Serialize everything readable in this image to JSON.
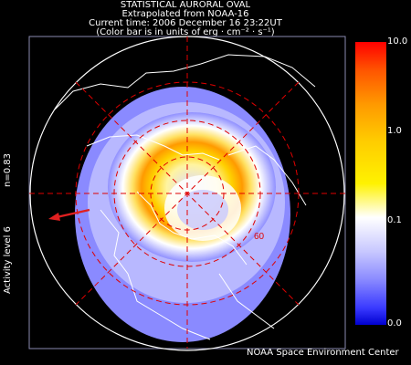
{
  "header": {
    "line1": "STATISTICAL AURORAL OVAL",
    "line2": "Extrapolated from NOAA-16",
    "line3": "Current time: 2006 December 16 23:22UT",
    "line4": "(Color bar is in units of erg · cm⁻² · s⁻¹)"
  },
  "side_labels": {
    "n_value": "n=0.83",
    "activity": "Activity level 6"
  },
  "map": {
    "latitude_label": "60",
    "arrow_color": "#e02020",
    "grid_color": "#e00000"
  },
  "colorbar": {
    "ticks": [
      "10.0",
      "1.0",
      "0.1",
      "0.0"
    ]
  },
  "footer": {
    "credit": "NOAA Space Environment Center"
  }
}
